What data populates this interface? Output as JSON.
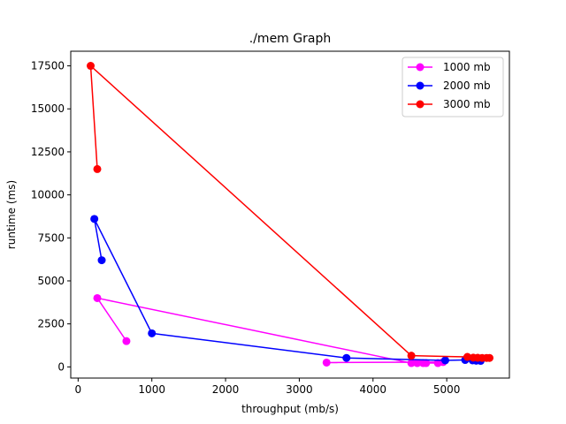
{
  "chart_data": {
    "type": "line",
    "title": "./mem Graph",
    "xlabel": "throughput (mb/s)",
    "ylabel": "runtime (ms)",
    "xlim": [
      -100,
      5850
    ],
    "ylim": [
      -650,
      18350
    ],
    "x_ticks": [
      0,
      1000,
      2000,
      3000,
      4000,
      5000
    ],
    "y_ticks": [
      0,
      2500,
      5000,
      7500,
      10000,
      12500,
      15000,
      17500
    ],
    "legend_position": "top-right",
    "grid": false,
    "series": [
      {
        "name": "1000 mb",
        "color": "#ff00ff",
        "points": [
          [
            655,
            1500
          ],
          [
            260,
            4000
          ],
          [
            4520,
            220
          ],
          [
            4600,
            220
          ],
          [
            4680,
            220
          ],
          [
            4720,
            220
          ],
          [
            4880,
            220
          ],
          [
            4950,
            280
          ],
          [
            3370,
            250
          ]
        ]
      },
      {
        "name": "2000 mb",
        "color": "#0000ff",
        "points": [
          [
            320,
            6200
          ],
          [
            220,
            8600
          ],
          [
            1000,
            1950
          ],
          [
            3640,
            520
          ],
          [
            4980,
            380
          ],
          [
            5250,
            400
          ],
          [
            5350,
            380
          ],
          [
            5400,
            360
          ],
          [
            5460,
            350
          ]
        ]
      },
      {
        "name": "3000 mb",
        "color": "#ff0000",
        "points": [
          [
            260,
            11500
          ],
          [
            170,
            17500
          ],
          [
            4520,
            650
          ],
          [
            5280,
            580
          ],
          [
            5360,
            540
          ],
          [
            5420,
            530
          ],
          [
            5480,
            520
          ],
          [
            5540,
            520
          ],
          [
            5580,
            520
          ]
        ]
      }
    ]
  }
}
